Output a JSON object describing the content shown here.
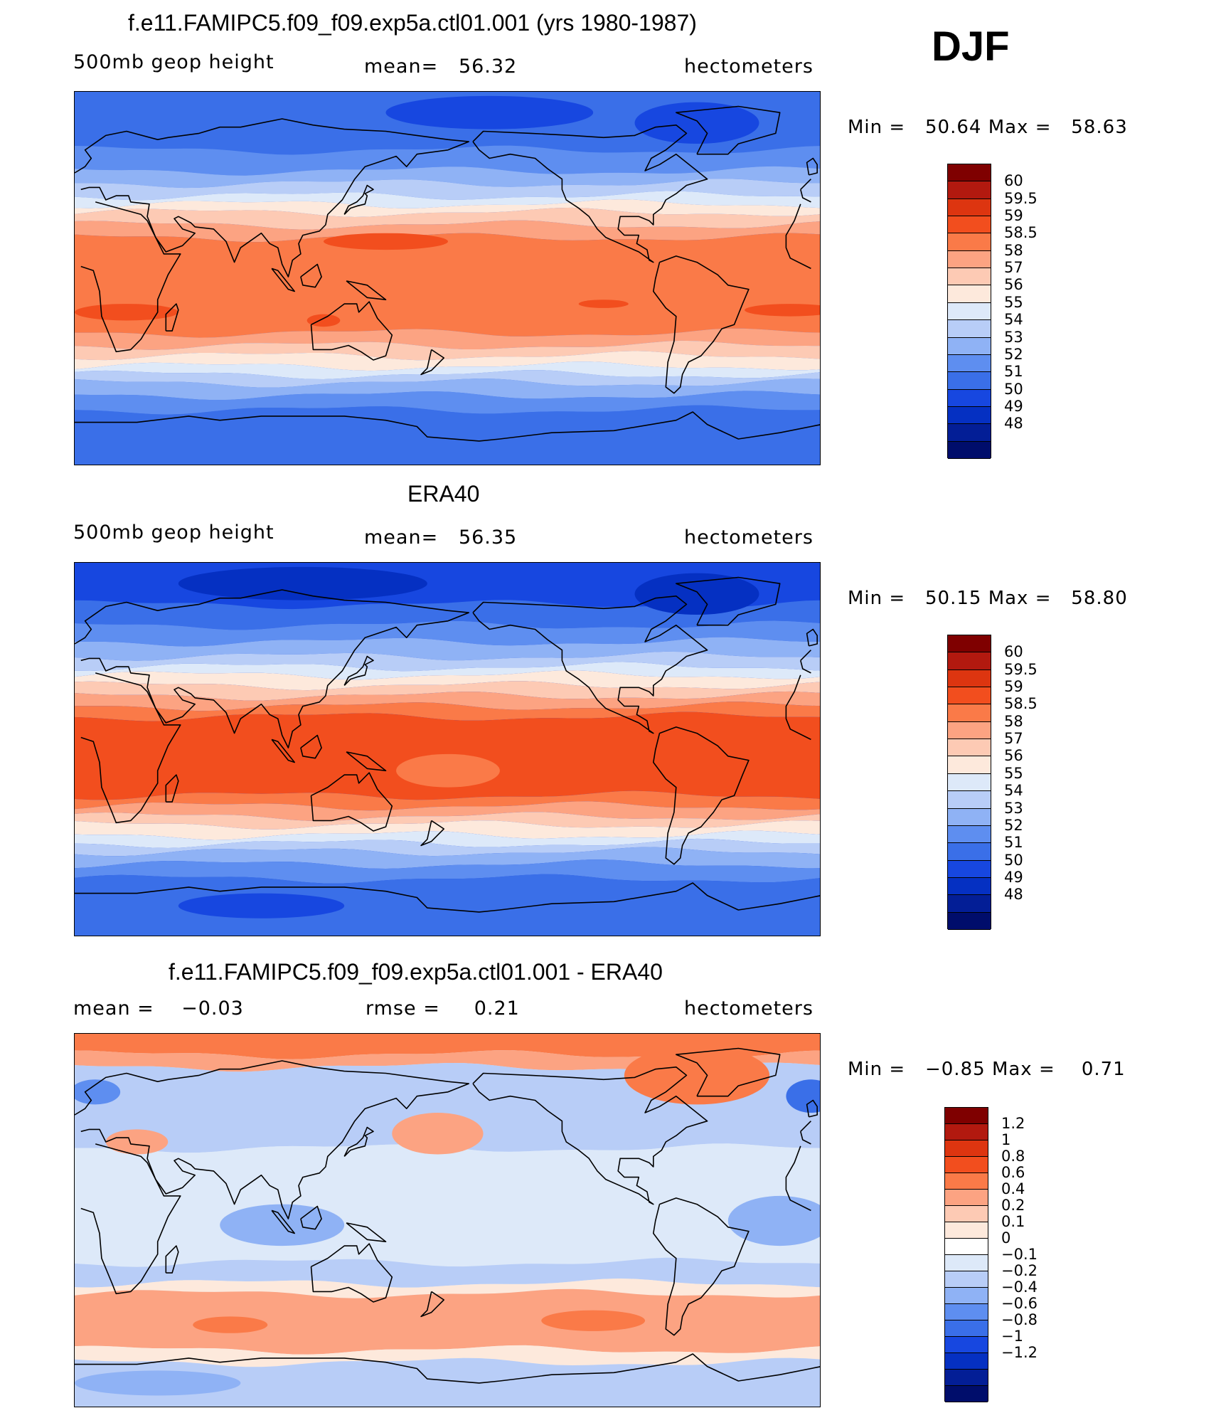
{
  "season": "DJF",
  "panels": [
    {
      "title": "f.e11.FAMIPC5.f09_f09.exp5a.ctl01.001 (yrs 1980-1987)",
      "left_label": "500mb geop height",
      "center_label": "mean=   56.32",
      "right_label": "hectometers",
      "min_label": "Min =",
      "min_value": "50.64",
      "max_label": "Max =",
      "max_value": "58.63",
      "colorbar": {
        "colors": [
          "#7f0000",
          "#b2190f",
          "#dd3510",
          "#f24e1e",
          "#fa7a48",
          "#fca382",
          "#fdcab4",
          "#fde9dc",
          "#dde9f9",
          "#b8cdf7",
          "#8fb2f5",
          "#5e8ef0",
          "#3a6fe8",
          "#1747e0",
          "#0530c2",
          "#031e96",
          "#000d6b"
        ],
        "labels": [
          "60",
          "59.5",
          "59",
          "58.5",
          "58",
          "57",
          "56",
          "55",
          "54",
          "53",
          "52",
          "51",
          "50",
          "49",
          "48"
        ]
      },
      "map": {
        "type": "zonal",
        "bands": [
          {
            "lat": 90,
            "color": "#3a6fe8"
          },
          {
            "lat": 62,
            "color": "#5e8ef0"
          },
          {
            "lat": 52,
            "color": "#8fb2f5"
          },
          {
            "lat": 46,
            "color": "#b8cdf7"
          },
          {
            "lat": 40,
            "color": "#dde9f9"
          },
          {
            "lat": 36,
            "color": "#fde9dc"
          },
          {
            "lat": 32,
            "color": "#fdcab4"
          },
          {
            "lat": 26,
            "color": "#fca382"
          },
          {
            "lat": 20,
            "color": "#fa7a48"
          },
          {
            "lat": -26,
            "color": "#fca382"
          },
          {
            "lat": -32,
            "color": "#fdcab4"
          },
          {
            "lat": -37,
            "color": "#fde9dc"
          },
          {
            "lat": -42,
            "color": "#dde9f9"
          },
          {
            "lat": -46,
            "color": "#b8cdf7"
          },
          {
            "lat": -50,
            "color": "#8fb2f5"
          },
          {
            "lat": -56,
            "color": "#5e8ef0"
          },
          {
            "lat": -63,
            "color": "#3a6fe8"
          },
          {
            "lat": -90,
            "color": "#3a6fe8"
          }
        ],
        "blobs": [
          {
            "lon": 150,
            "lat": 18,
            "rx": 30,
            "ry": 4,
            "color": "#f24e1e"
          },
          {
            "lon": 25,
            "lat": -16,
            "rx": 25,
            "ry": 4,
            "color": "#f24e1e"
          },
          {
            "lon": 345,
            "lat": -15,
            "rx": 22,
            "ry": 3,
            "color": "#f24e1e"
          },
          {
            "lon": 255,
            "lat": -12,
            "rx": 12,
            "ry": 2,
            "color": "#f24e1e"
          },
          {
            "lon": 120,
            "lat": -20,
            "rx": 8,
            "ry": 3,
            "color": "#f24e1e"
          },
          {
            "lon": 300,
            "lat": 75,
            "rx": 30,
            "ry": 10,
            "color": "#1747e0"
          },
          {
            "lon": 200,
            "lat": 80,
            "rx": 50,
            "ry": 8,
            "color": "#1747e0"
          }
        ]
      }
    },
    {
      "title": "ERA40",
      "left_label": "500mb geop height",
      "center_label": "mean=   56.35",
      "right_label": "hectometers",
      "min_label": "Min =",
      "min_value": "50.15",
      "max_label": "Max =",
      "max_value": "58.80",
      "colorbar": {
        "colors": [
          "#7f0000",
          "#b2190f",
          "#dd3510",
          "#f24e1e",
          "#fa7a48",
          "#fca382",
          "#fdcab4",
          "#fde9dc",
          "#dde9f9",
          "#b8cdf7",
          "#8fb2f5",
          "#5e8ef0",
          "#3a6fe8",
          "#1747e0",
          "#0530c2",
          "#031e96",
          "#000d6b"
        ],
        "labels": [
          "60",
          "59.5",
          "59",
          "58.5",
          "58",
          "57",
          "56",
          "55",
          "54",
          "53",
          "52",
          "51",
          "50",
          "49",
          "48"
        ]
      },
      "map": {
        "type": "zonal",
        "bands": [
          {
            "lat": 90,
            "color": "#1747e0"
          },
          {
            "lat": 70,
            "color": "#3a6fe8"
          },
          {
            "lat": 60,
            "color": "#5e8ef0"
          },
          {
            "lat": 52,
            "color": "#8fb2f5"
          },
          {
            "lat": 45,
            "color": "#b8cdf7"
          },
          {
            "lat": 40,
            "color": "#dde9f9"
          },
          {
            "lat": 36,
            "color": "#fde9dc"
          },
          {
            "lat": 31,
            "color": "#fdcab4"
          },
          {
            "lat": 26,
            "color": "#fca382"
          },
          {
            "lat": 21,
            "color": "#fa7a48"
          },
          {
            "lat": 16,
            "color": "#f24e1e"
          },
          {
            "lat": -22,
            "color": "#fa7a48"
          },
          {
            "lat": -27,
            "color": "#fca382"
          },
          {
            "lat": -32,
            "color": "#fdcab4"
          },
          {
            "lat": -36,
            "color": "#fde9dc"
          },
          {
            "lat": -41,
            "color": "#dde9f9"
          },
          {
            "lat": -45,
            "color": "#b8cdf7"
          },
          {
            "lat": -49,
            "color": "#8fb2f5"
          },
          {
            "lat": -55,
            "color": "#5e8ef0"
          },
          {
            "lat": -62,
            "color": "#3a6fe8"
          },
          {
            "lat": -90,
            "color": "#3a6fe8"
          }
        ],
        "blobs": [
          {
            "lon": 180,
            "lat": -10,
            "rx": 25,
            "ry": 8,
            "color": "#fa7a48"
          },
          {
            "lon": 300,
            "lat": 75,
            "rx": 30,
            "ry": 10,
            "color": "#0530c2"
          },
          {
            "lon": 110,
            "lat": 80,
            "rx": 60,
            "ry": 8,
            "color": "#0530c2"
          },
          {
            "lon": 90,
            "lat": -75,
            "rx": 40,
            "ry": 6,
            "color": "#1747e0"
          }
        ]
      }
    },
    {
      "title": "f.e11.FAMIPC5.f09_f09.exp5a.ctl01.001 - ERA40",
      "left_label": "mean =    −0.03",
      "center_label": "rmse =     0.21",
      "right_label": "hectometers",
      "min_label": "Min =",
      "min_value": "−0.85",
      "max_label": "Max =",
      "max_value": "0.71",
      "colorbar": {
        "colors": [
          "#7f0000",
          "#b2190f",
          "#dd3510",
          "#f24e1e",
          "#fa7a48",
          "#fca382",
          "#fdcab4",
          "#fde9dc",
          "#ffffff",
          "#dde9f9",
          "#b8cdf7",
          "#8fb2f5",
          "#5e8ef0",
          "#3a6fe8",
          "#1747e0",
          "#0530c2",
          "#031e96",
          "#000d6b"
        ],
        "labels": [
          "1.2",
          "1",
          "0.8",
          "0.6",
          "0.4",
          "0.2",
          "0.1",
          "0",
          "−0.1",
          "−0.2",
          "−0.4",
          "−0.6",
          "−0.8",
          "−1",
          "−1.2"
        ]
      },
      "map": {
        "type": "anomaly",
        "base": "#dde9f9",
        "bands": [
          {
            "lat": 90,
            "color": "#fa7a48"
          },
          {
            "lat": 80,
            "color": "#fca382"
          },
          {
            "lat": 74,
            "color": "#b8cdf7"
          },
          {
            "lat": 35,
            "color": "#dde9f9"
          },
          {
            "lat": -20,
            "color": "#b8cdf7"
          },
          {
            "lat": -30,
            "color": "#fde9dc"
          },
          {
            "lat": -35,
            "color": "#fca382"
          },
          {
            "lat": -62,
            "color": "#fde9dc"
          },
          {
            "lat": -68,
            "color": "#b8cdf7"
          },
          {
            "lat": -90,
            "color": "#b8cdf7"
          }
        ],
        "blobs": [
          {
            "lon": 175,
            "lat": 42,
            "rx": 22,
            "ry": 10,
            "color": "#fca382"
          },
          {
            "lon": 30,
            "lat": 38,
            "rx": 15,
            "ry": 6,
            "color": "#fca382"
          },
          {
            "lon": 300,
            "lat": 70,
            "rx": 35,
            "ry": 14,
            "color": "#fa7a48"
          },
          {
            "lon": 355,
            "lat": 60,
            "rx": 12,
            "ry": 8,
            "color": "#3a6fe8"
          },
          {
            "lon": 10,
            "lat": 62,
            "rx": 12,
            "ry": 6,
            "color": "#5e8ef0"
          },
          {
            "lon": 100,
            "lat": -2,
            "rx": 30,
            "ry": 10,
            "color": "#8fb2f5"
          },
          {
            "lon": 340,
            "lat": 0,
            "rx": 25,
            "ry": 12,
            "color": "#8fb2f5"
          },
          {
            "lon": 75,
            "lat": -50,
            "rx": 18,
            "ry": 4,
            "color": "#fa7a48"
          },
          {
            "lon": 250,
            "lat": -48,
            "rx": 25,
            "ry": 5,
            "color": "#fa7a48"
          },
          {
            "lon": 40,
            "lat": -78,
            "rx": 40,
            "ry": 6,
            "color": "#8fb2f5"
          }
        ]
      }
    }
  ]
}
